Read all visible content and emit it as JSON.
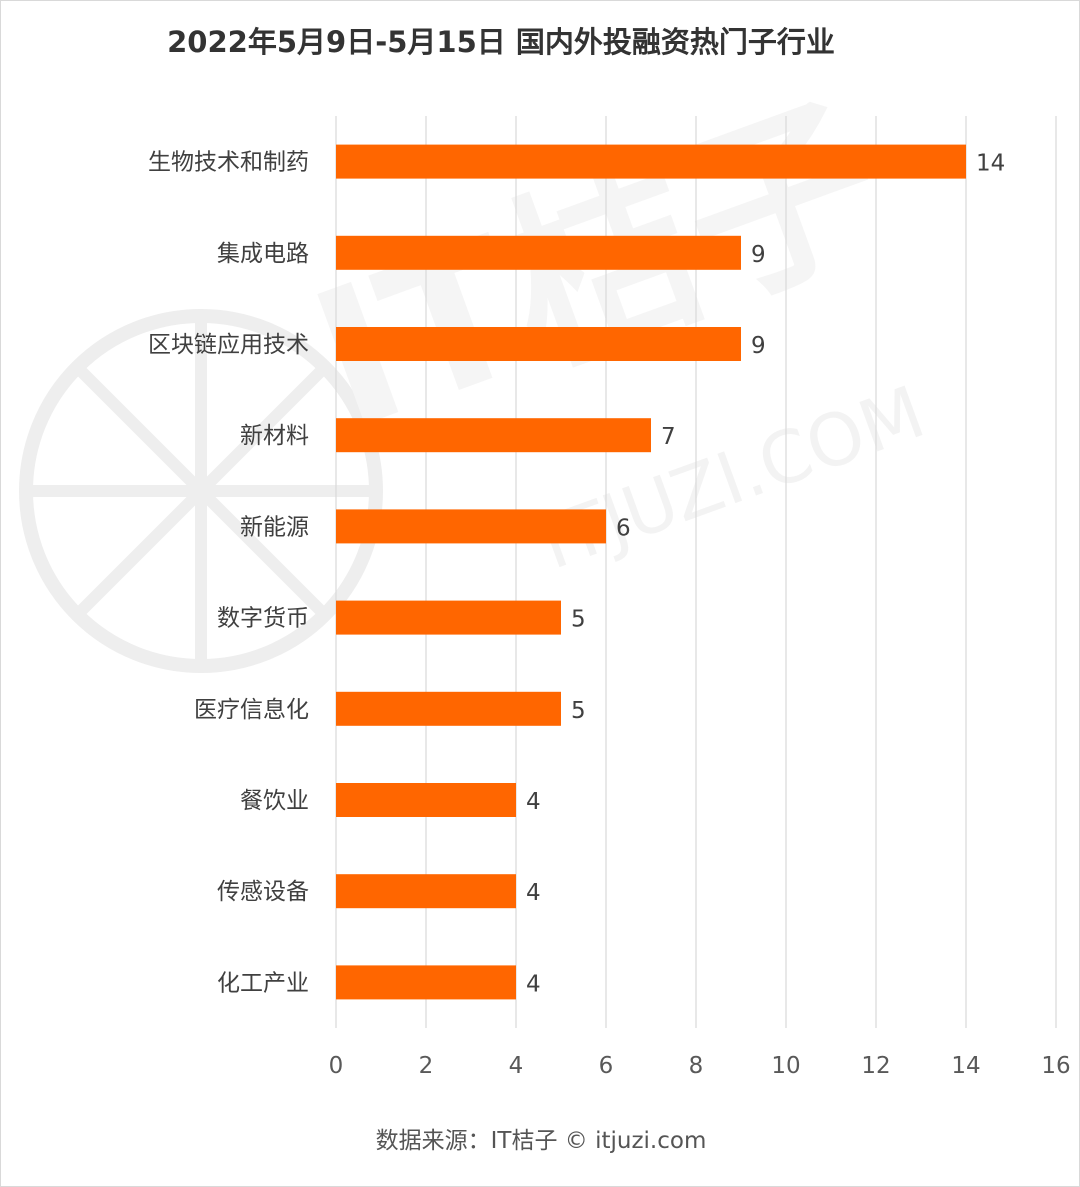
{
  "title": "2022年5月9日-5月15日 国内外投融资热门子行业",
  "source": "数据来源：IT桔子 © itjuzi.com",
  "watermark": {
    "brand": "IT桔子",
    "domain": "ITJUZI.COM"
  },
  "colors": {
    "bar": "#ff6600",
    "grid": "#d9d9d9",
    "text": "#404040",
    "title": "#333333"
  },
  "chart_data": {
    "type": "bar",
    "orientation": "horizontal",
    "categories": [
      "生物技术和制药",
      "集成电路",
      "区块链应用技术",
      "新材料",
      "新能源",
      "数字货币",
      "医疗信息化",
      "餐饮业",
      "传感设备",
      "化工产业"
    ],
    "values": [
      14,
      9,
      9,
      7,
      6,
      5,
      5,
      4,
      4,
      4
    ],
    "title": "2022年5月9日-5月15日 国内外投融资热门子行业",
    "xlabel": "",
    "ylabel": "",
    "xlim": [
      0,
      16
    ],
    "xticks": [
      0,
      2,
      4,
      6,
      8,
      10,
      12,
      14,
      16
    ],
    "grid": "vertical",
    "legend": "none",
    "data_labels": true
  }
}
